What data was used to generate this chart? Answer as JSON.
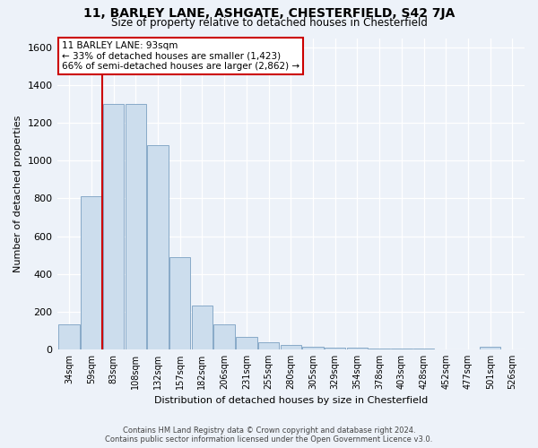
{
  "title1": "11, BARLEY LANE, ASHGATE, CHESTERFIELD, S42 7JA",
  "title2": "Size of property relative to detached houses in Chesterfield",
  "xlabel": "Distribution of detached houses by size in Chesterfield",
  "ylabel": "Number of detached properties",
  "bar_color": "#ccdded",
  "bar_edge_color": "#88aac8",
  "annotation_box_color": "#cc0000",
  "vline_color": "#cc0000",
  "annotation_title": "11 BARLEY LANE: 93sqm",
  "annotation_line1": "← 33% of detached houses are smaller (1,423)",
  "annotation_line2": "66% of semi-detached houses are larger (2,862) →",
  "footer1": "Contains HM Land Registry data © Crown copyright and database right 2024.",
  "footer2": "Contains public sector information licensed under the Open Government Licence v3.0.",
  "categories": [
    "34sqm",
    "59sqm",
    "83sqm",
    "108sqm",
    "132sqm",
    "157sqm",
    "182sqm",
    "206sqm",
    "231sqm",
    "255sqm",
    "280sqm",
    "305sqm",
    "329sqm",
    "354sqm",
    "378sqm",
    "403sqm",
    "428sqm",
    "452sqm",
    "477sqm",
    "501sqm",
    "526sqm"
  ],
  "values": [
    130,
    810,
    1300,
    1300,
    1080,
    490,
    230,
    130,
    65,
    35,
    25,
    15,
    10,
    10,
    5,
    2,
    2,
    1,
    1,
    12,
    1
  ],
  "ylim": [
    0,
    1650
  ],
  "yticks": [
    0,
    200,
    400,
    600,
    800,
    1000,
    1200,
    1400,
    1600
  ],
  "background_color": "#edf2f9",
  "vline_bin_index": 2
}
